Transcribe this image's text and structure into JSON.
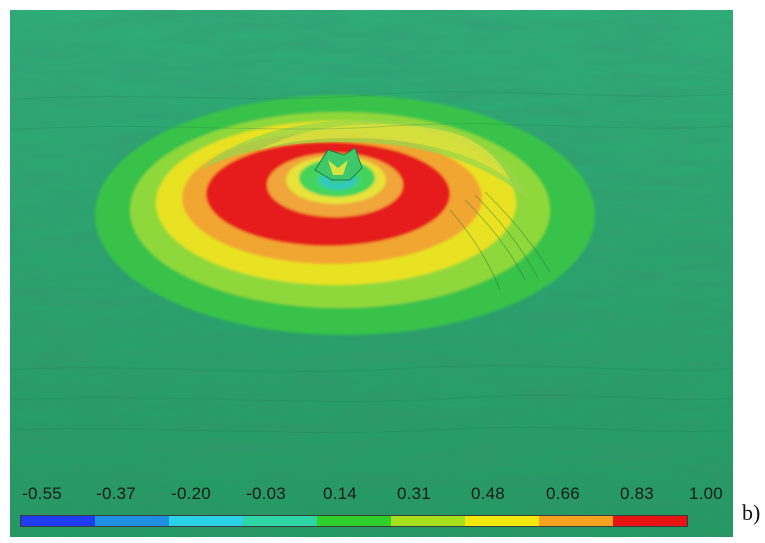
{
  "colorbar": {
    "ticks": [
      "-0.55",
      "-0.37",
      "-0.20",
      "-0.03",
      "0.14",
      "0.31",
      "0.48",
      "0.66",
      "0.83",
      "1.00"
    ],
    "colors": [
      "#1f3cf0",
      "#1f8fe0",
      "#2ad2e6",
      "#2ed6a6",
      "#2fd02a",
      "#a6e01c",
      "#f2e80e",
      "#f5a21e",
      "#e81414"
    ]
  },
  "panel_label": "b)"
}
